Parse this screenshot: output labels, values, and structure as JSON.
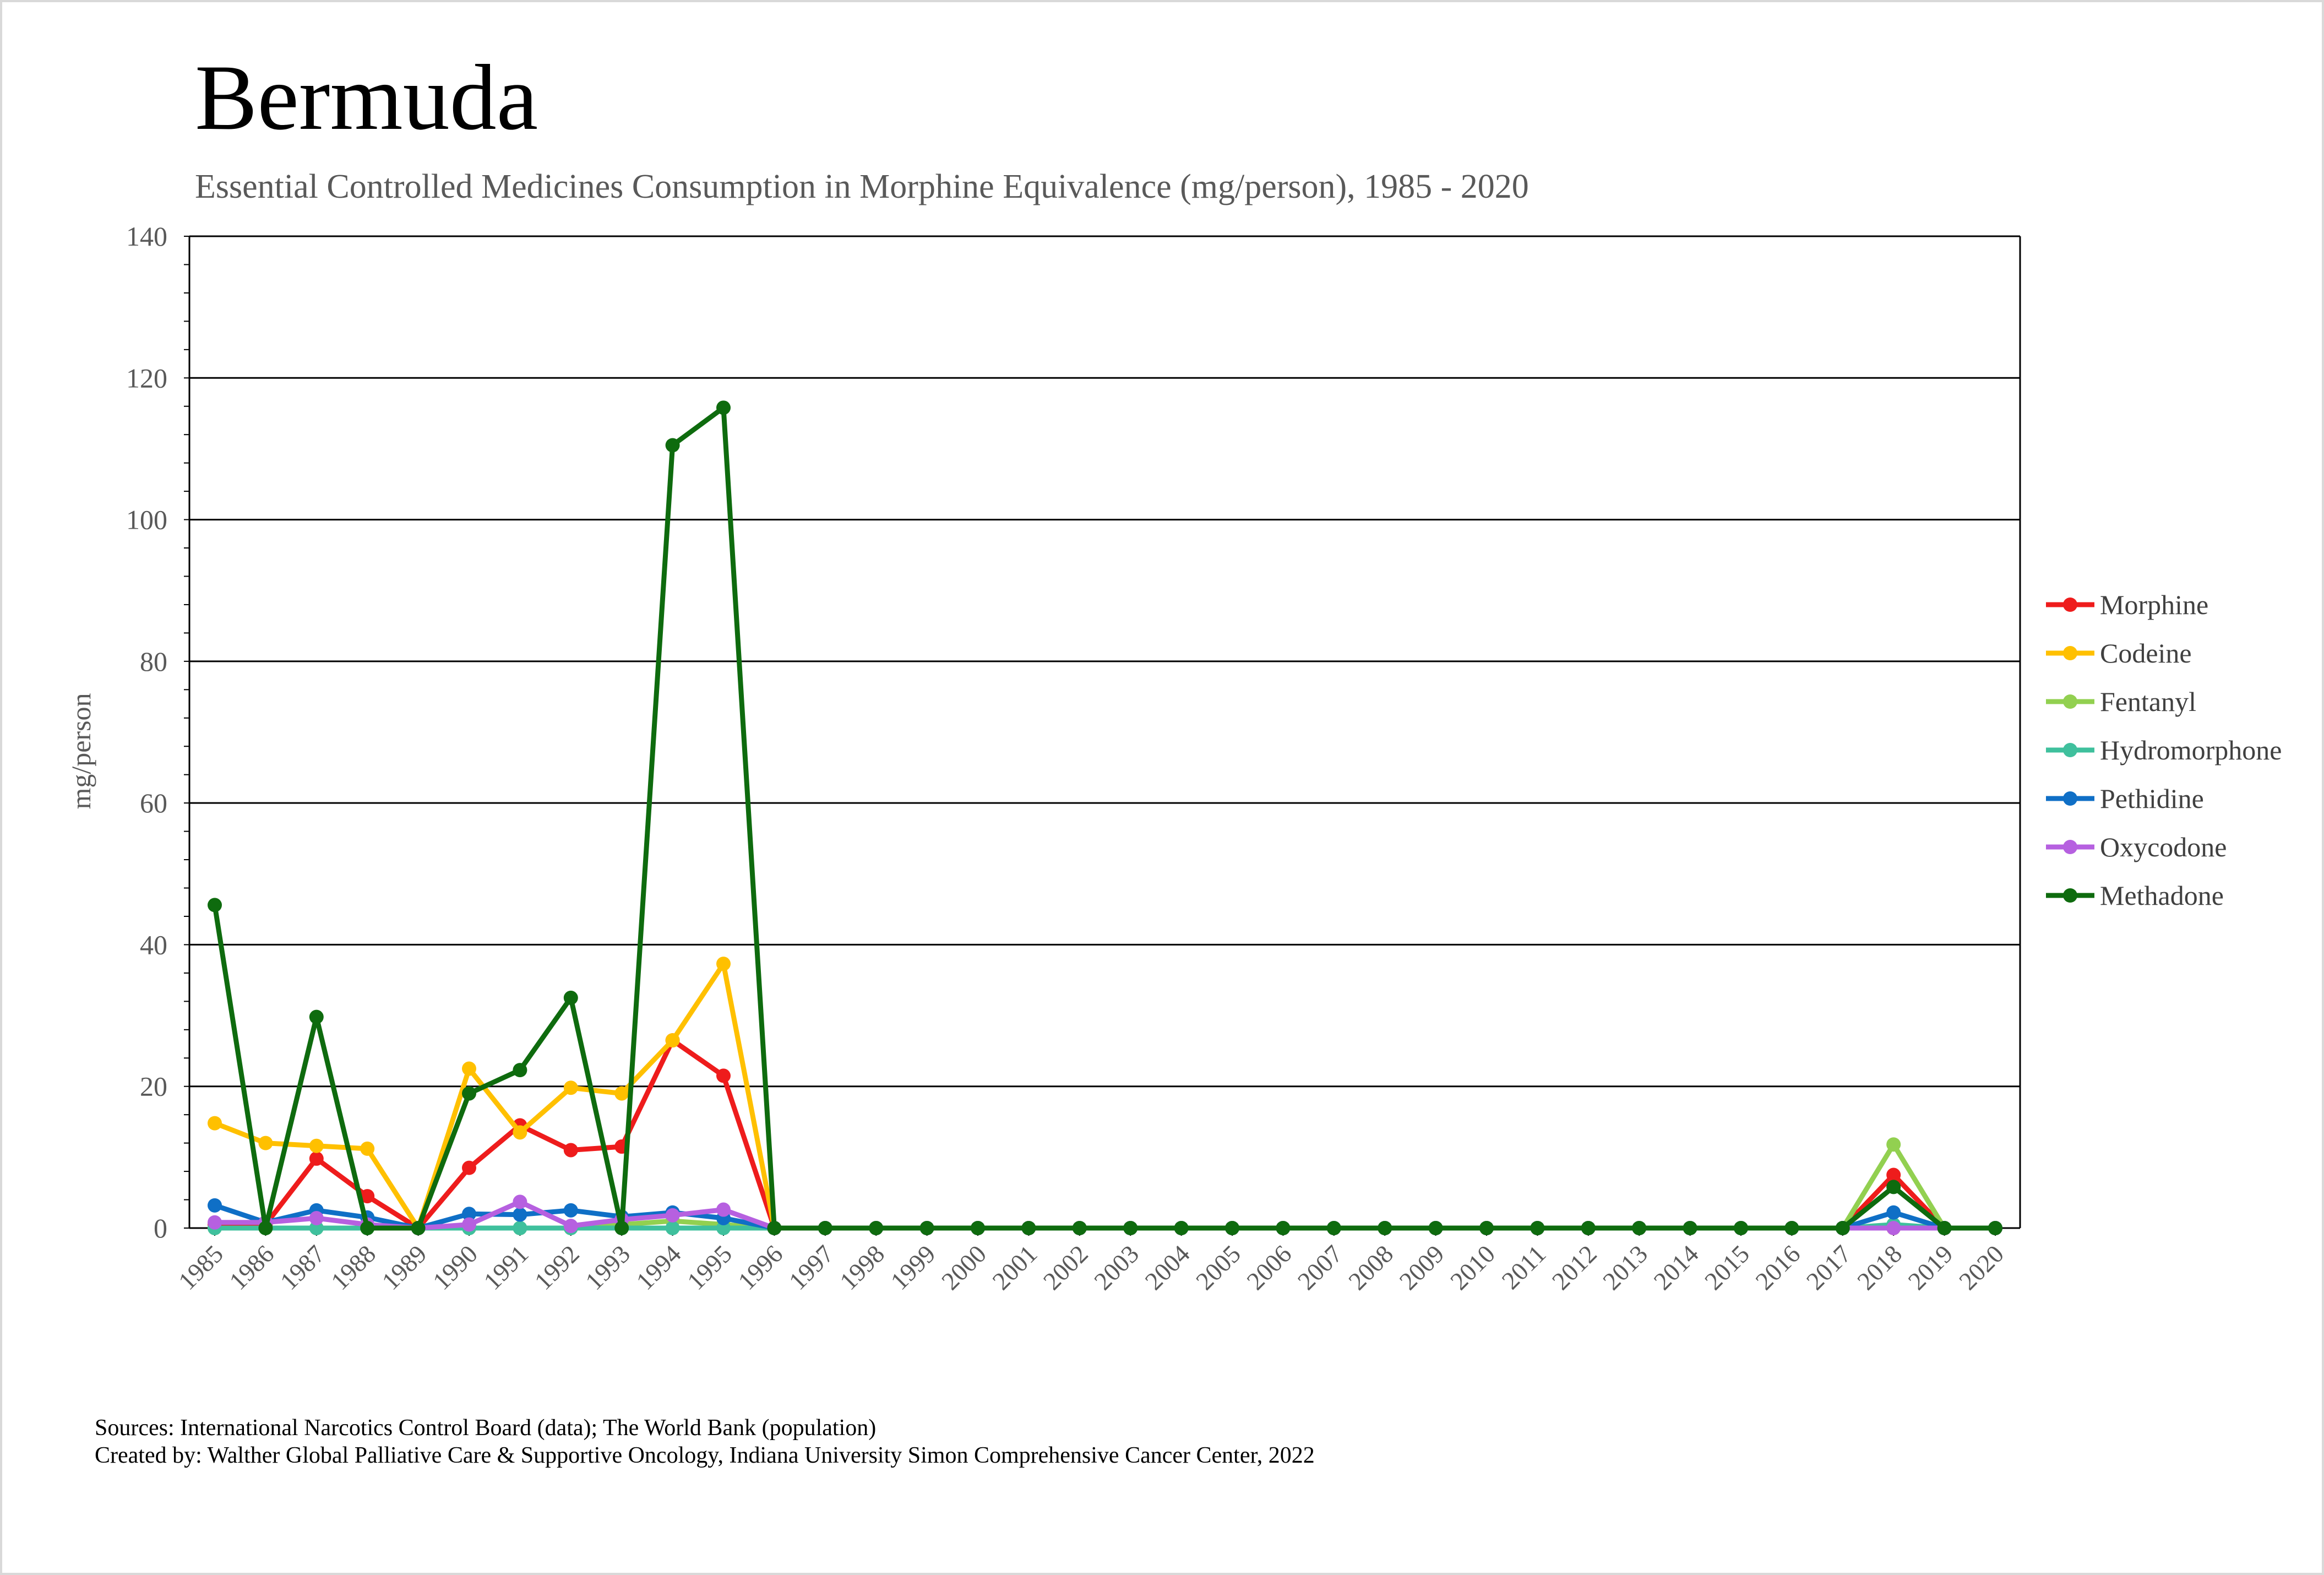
{
  "chart_data": {
    "type": "line",
    "title": "Bermuda",
    "subtitle": "Essential Controlled Medicines Consumption in Morphine Equivalence (mg/person), 1985 - 2020",
    "xlabel": "",
    "ylabel": "mg/person",
    "ylim": [
      0,
      140
    ],
    "yticks": [
      0,
      20,
      40,
      60,
      80,
      100,
      120,
      140
    ],
    "grid": true,
    "legend_position": "right",
    "categories": [
      "1985",
      "1986",
      "1987",
      "1988",
      "1989",
      "1990",
      "1991",
      "1992",
      "1993",
      "1994",
      "1995",
      "1996",
      "1997",
      "1998",
      "1999",
      "2000",
      "2001",
      "2002",
      "2003",
      "2004",
      "2005",
      "2006",
      "2007",
      "2008",
      "2009",
      "2010",
      "2011",
      "2012",
      "2013",
      "2014",
      "2015",
      "2016",
      "2017",
      "2018",
      "2019",
      "2020"
    ],
    "series": [
      {
        "name": "Morphine",
        "color": "#ee1c1c",
        "values": [
          0.5,
          0.5,
          9.8,
          4.5,
          0,
          8.5,
          14.5,
          11,
          11.5,
          26.5,
          21.5,
          0,
          0,
          0,
          0,
          0,
          0,
          0,
          0,
          0,
          0,
          0,
          0,
          0,
          0,
          0,
          0,
          0,
          0,
          0,
          0,
          0,
          0,
          7.5,
          0,
          0
        ]
      },
      {
        "name": "Codeine",
        "color": "#ffc000",
        "values": [
          14.8,
          12,
          11.6,
          11.2,
          0,
          22.5,
          13.5,
          19.8,
          19,
          26.5,
          37.3,
          0,
          0,
          0,
          0,
          0,
          0,
          0,
          0,
          0,
          0,
          0,
          0,
          0,
          0,
          0,
          0,
          0,
          0,
          0,
          0,
          0,
          0,
          0,
          0,
          0
        ]
      },
      {
        "name": "Fentanyl",
        "color": "#92d050",
        "values": [
          0,
          0,
          0,
          0,
          0,
          0,
          0,
          0,
          0.5,
          1,
          0.5,
          0,
          0,
          0,
          0,
          0,
          0,
          0,
          0,
          0,
          0,
          0,
          0,
          0,
          0,
          0,
          0,
          0,
          0,
          0,
          0,
          0,
          0,
          11.8,
          0,
          0
        ]
      },
      {
        "name": "Hydromorphone",
        "color": "#3fc09d",
        "values": [
          0,
          0,
          0,
          0,
          0,
          0,
          0,
          0,
          0,
          0,
          0,
          0,
          0,
          0,
          0,
          0,
          0,
          0,
          0,
          0,
          0,
          0,
          0,
          0,
          0,
          0,
          0,
          0,
          0,
          0,
          0,
          0,
          0,
          0.5,
          0,
          0
        ]
      },
      {
        "name": "Pethidine",
        "color": "#0f6fc6",
        "values": [
          3.2,
          0.8,
          2.5,
          1.5,
          0,
          2,
          1.9,
          2.5,
          1.6,
          2.2,
          1.4,
          0,
          0,
          0,
          0,
          0,
          0,
          0,
          0,
          0,
          0,
          0,
          0,
          0,
          0,
          0,
          0,
          0,
          0,
          0,
          0,
          0,
          0,
          2.2,
          0,
          0
        ]
      },
      {
        "name": "Oxycodone",
        "color": "#b660e0",
        "values": [
          0.8,
          0.8,
          1.4,
          0.5,
          0,
          0.5,
          3.7,
          0.3,
          1.2,
          1.8,
          2.6,
          0,
          0,
          0,
          0,
          0,
          0,
          0,
          0,
          0,
          0,
          0,
          0,
          0,
          0,
          0,
          0,
          0,
          0,
          0,
          0,
          0,
          0,
          0,
          0,
          0
        ]
      },
      {
        "name": "Methadone",
        "color": "#0e6b0e",
        "values": [
          45.6,
          0,
          29.8,
          0,
          0,
          19,
          22.3,
          32.5,
          0,
          110.5,
          115.8,
          0,
          0,
          0,
          0,
          0,
          0,
          0,
          0,
          0,
          0,
          0,
          0,
          0,
          0,
          0,
          0,
          0,
          0,
          0,
          0,
          0,
          0,
          5.8,
          0,
          0
        ]
      }
    ]
  },
  "footer": {
    "sources": "Sources: International Narcotics Control Board (data); The World Bank (population)",
    "created_by": "Created by: Walther Global Palliative Care & Supportive Oncology, Indiana University Simon Comprehensive Cancer Center, 2022"
  }
}
